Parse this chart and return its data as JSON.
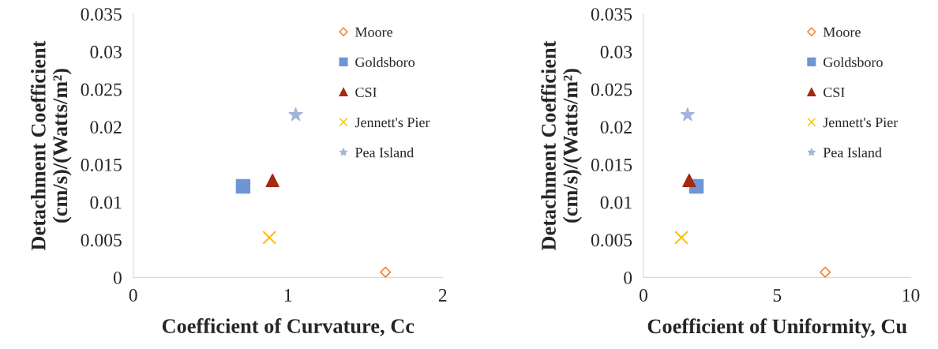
{
  "chart_data": [
    {
      "type": "scatter",
      "xlabel": "Coefficient of Curvature, Cc",
      "ylabel": "Detachment Coefficient\n(cm/s)/(Watts/m²)",
      "xlim": [
        0,
        2
      ],
      "xticks": [
        0,
        1,
        2
      ],
      "ylim": [
        0,
        0.035
      ],
      "yticks": [
        0,
        0.005,
        0.01,
        0.015,
        0.02,
        0.025,
        0.03,
        0.035
      ],
      "grid": false,
      "legend": "top right",
      "series": [
        {
          "name": "Moore",
          "color": "#ed7d31",
          "marker": "diamond",
          "x": [
            1.63
          ],
          "values": [
            0.0007
          ]
        },
        {
          "name": "Goldsboro",
          "color": "#6f95d6",
          "marker": "square",
          "x": [
            0.71
          ],
          "values": [
            0.0121
          ]
        },
        {
          "name": "CSI",
          "color": "#a52a12",
          "marker": "triangle",
          "x": [
            0.9
          ],
          "values": [
            0.0129
          ]
        },
        {
          "name": "Jennett's Pier",
          "color": "#ffc000",
          "marker": "cross",
          "x": [
            0.88
          ],
          "values": [
            0.0053
          ]
        },
        {
          "name": "Pea Island",
          "color": "#a5b4d8",
          "marker": "star",
          "x": [
            1.05
          ],
          "values": [
            0.0216
          ]
        }
      ]
    },
    {
      "type": "scatter",
      "xlabel": "Coefficient of Uniformity, Cu",
      "ylabel": "Detachment Coefficient\n(cm/s)/(Watts/m²)",
      "xlim": [
        0,
        10
      ],
      "xticks": [
        0,
        5,
        10
      ],
      "ylim": [
        0,
        0.035
      ],
      "yticks": [
        0,
        0.005,
        0.01,
        0.015,
        0.02,
        0.025,
        0.03,
        0.035
      ],
      "grid": false,
      "legend": "top right",
      "series": [
        {
          "name": "Moore",
          "color": "#ed7d31",
          "marker": "diamond",
          "x": [
            6.8
          ],
          "values": [
            0.0007
          ]
        },
        {
          "name": "Goldsboro",
          "color": "#6f95d6",
          "marker": "square",
          "x": [
            1.98
          ],
          "values": [
            0.0121
          ]
        },
        {
          "name": "CSI",
          "color": "#a52a12",
          "marker": "triangle",
          "x": [
            1.71
          ],
          "values": [
            0.0129
          ]
        },
        {
          "name": "Jennett's Pier",
          "color": "#ffc000",
          "marker": "cross",
          "x": [
            1.42
          ],
          "values": [
            0.0053
          ]
        },
        {
          "name": "Pea Island",
          "color": "#a5b4d8",
          "marker": "star",
          "x": [
            1.65
          ],
          "values": [
            0.0216
          ]
        }
      ]
    }
  ]
}
